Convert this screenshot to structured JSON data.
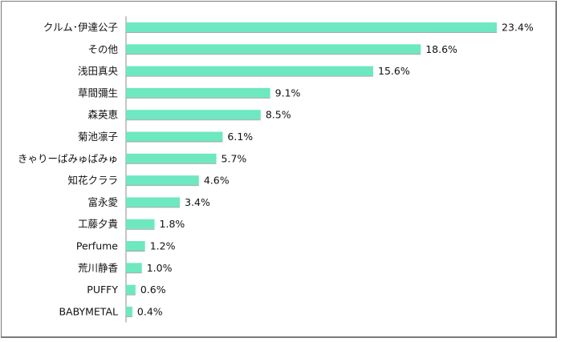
{
  "chart_data": {
    "type": "bar",
    "orientation": "horizontal",
    "categories": [
      "クルム･伊達公子",
      "その他",
      "浅田真央",
      "草間彌生",
      "森英恵",
      "菊池凛子",
      "きゃりーぱみゅぱみゅ",
      "知花クララ",
      "富永愛",
      "工藤夕貴",
      "Perfume",
      "荒川静香",
      "PUFFY",
      "BABYMETAL"
    ],
    "values": [
      23.4,
      18.6,
      15.6,
      9.1,
      8.5,
      6.1,
      5.7,
      4.6,
      3.4,
      1.8,
      1.2,
      1.0,
      0.6,
      0.4
    ],
    "value_labels": [
      "23.4%",
      "18.6%",
      "15.6%",
      "9.1%",
      "8.5%",
      "6.1%",
      "5.7%",
      "4.6%",
      "3.4%",
      "1.8%",
      "1.2%",
      "1.0%",
      "0.6%",
      "0.4%"
    ],
    "unit": "%",
    "title": "",
    "xlabel": "",
    "ylabel": "",
    "xlim": [
      0,
      23.4
    ],
    "grid": false,
    "legend": "none",
    "colors": {
      "bar": "#6ee8c0",
      "axis": "#8c8c8c",
      "text": "#111111"
    }
  }
}
